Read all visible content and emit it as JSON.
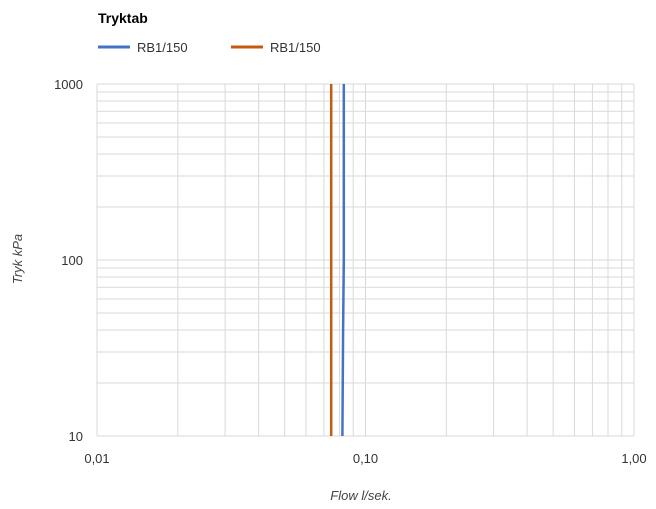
{
  "chart_data": {
    "type": "line",
    "title": "Tryktab",
    "xlabel": "Flow l/sek.",
    "ylabel": "Tryk kPa",
    "x_scale": "log",
    "y_scale": "log",
    "xlim": [
      0.01,
      1.0
    ],
    "ylim": [
      10,
      1000
    ],
    "x_ticks": [
      0.01,
      0.1,
      1.0
    ],
    "x_tick_labels": [
      "0,01",
      "0,10",
      "1,00"
    ],
    "y_ticks": [
      10,
      100,
      1000
    ],
    "y_tick_labels": [
      "10",
      "100",
      "1000"
    ],
    "grid": true,
    "legend_position": "top-left",
    "series": [
      {
        "name": "RB1/150",
        "color": "#4472c4",
        "points": [
          {
            "x": 0.082,
            "y": 10
          },
          {
            "x": 0.0825,
            "y": 40
          },
          {
            "x": 0.083,
            "y": 100
          },
          {
            "x": 0.083,
            "y": 1000
          }
        ]
      },
      {
        "name": "RB1/150",
        "color": "#c55a11",
        "points": [
          {
            "x": 0.0745,
            "y": 10
          },
          {
            "x": 0.0745,
            "y": 1000
          }
        ]
      }
    ]
  }
}
